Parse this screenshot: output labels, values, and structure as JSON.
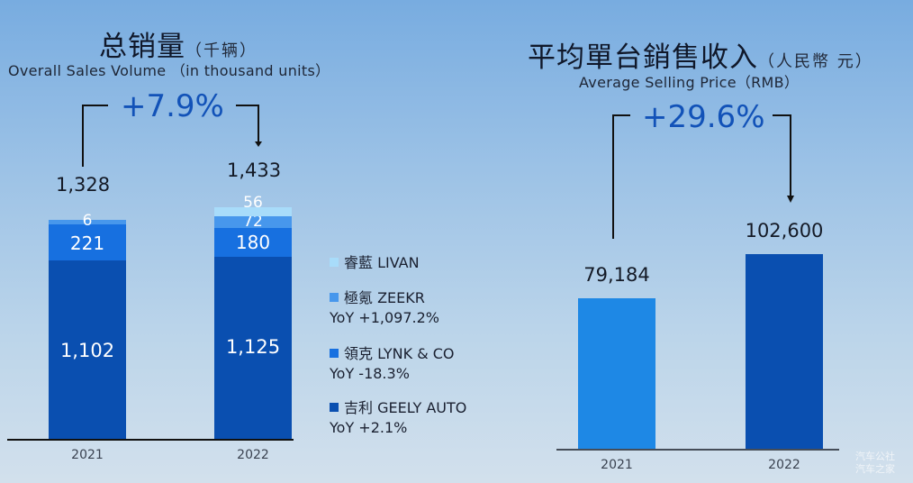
{
  "chart_data": [
    {
      "type": "bar",
      "stacked": true,
      "title": "总销量",
      "title_unit": "（千辆）",
      "subtitle": "Overall Sales Volume （in thousand units）",
      "categories": [
        "2021",
        "2022"
      ],
      "totals": [
        "1,328",
        "1,433"
      ],
      "growth_label": "+7.9%",
      "series": [
        {
          "name": "吉利 GEELY AUTO",
          "yoy": "YoY +2.1%",
          "color": "#0a4fb0",
          "values": [
            1102,
            1125
          ],
          "labels": [
            "1,102",
            "1,125"
          ]
        },
        {
          "name": "領克 LYNK & CO",
          "yoy": "YoY -18.3%",
          "color": "#1770e0",
          "values": [
            221,
            180
          ],
          "labels": [
            "221",
            "180"
          ]
        },
        {
          "name": "極氪 ZEEKR",
          "yoy": "YoY +1,097.2%",
          "color": "#4797ec",
          "values": [
            6,
            72
          ],
          "labels": [
            "6",
            "72"
          ]
        },
        {
          "name": "睿藍 LIVAN",
          "yoy": "",
          "color": "#a8dcfa",
          "values": [
            0,
            56
          ],
          "labels": [
            "",
            "56"
          ]
        }
      ],
      "legend_position": "right",
      "grid": false
    },
    {
      "type": "bar",
      "title": "平均單台銷售收入",
      "title_unit": "（人民幣 元）",
      "subtitle": "Average Selling Price（RMB）",
      "categories": [
        "2021",
        "2022"
      ],
      "values": [
        79184,
        102600
      ],
      "labels": [
        "79,184",
        "102,600"
      ],
      "colors": [
        "#1e88e5",
        "#0a4fb0"
      ],
      "growth_label": "+29.6%",
      "grid": false
    }
  ],
  "watermark": [
    "汽车公社",
    "汽车之家"
  ]
}
